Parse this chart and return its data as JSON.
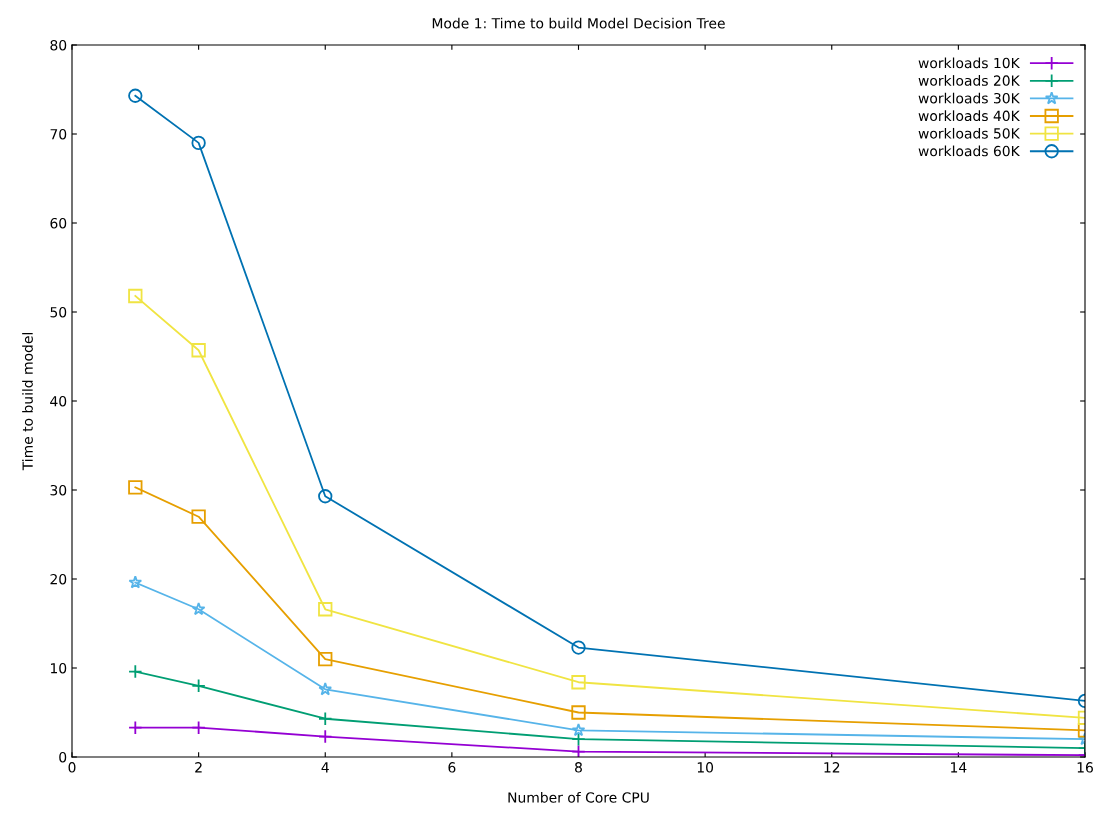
{
  "chart_data": {
    "type": "line",
    "title": "Mode 1: Time to build Model Decision Tree",
    "xlabel": "Number of Core CPU",
    "ylabel": "Time to build model",
    "x": [
      1,
      2,
      4,
      8,
      16
    ],
    "series": [
      {
        "name": "workloads 10K",
        "color": "#9400d3",
        "marker": "cross",
        "values": [
          3.3,
          3.3,
          2.3,
          0.6,
          0.2
        ]
      },
      {
        "name": "workloads 20K",
        "color": "#009e73",
        "marker": "cross",
        "values": [
          9.6,
          8.0,
          4.3,
          2.0,
          1.0
        ]
      },
      {
        "name": "workloads 30K",
        "color": "#56b4e9",
        "marker": "star",
        "values": [
          19.6,
          16.6,
          7.6,
          3.0,
          2.0
        ]
      },
      {
        "name": "workloads 40K",
        "color": "#e69f00",
        "marker": "square",
        "values": [
          30.3,
          27.0,
          11.0,
          5.0,
          3.0
        ]
      },
      {
        "name": "workloads 50K",
        "color": "#f0e442",
        "marker": "square",
        "values": [
          51.8,
          45.7,
          16.6,
          8.4,
          4.4
        ]
      },
      {
        "name": "workloads 60K",
        "color": "#0072b2",
        "marker": "circle",
        "values": [
          74.3,
          69.0,
          29.3,
          12.3,
          6.3
        ]
      }
    ],
    "xlim": [
      0,
      16
    ],
    "xticks": [
      0,
      2,
      4,
      6,
      8,
      10,
      12,
      14,
      16
    ],
    "ylim": [
      0,
      80
    ],
    "yticks": [
      0,
      10,
      20,
      30,
      40,
      50,
      60,
      70,
      80
    ],
    "grid": false,
    "legend": "top right",
    "line_style": "solid"
  }
}
